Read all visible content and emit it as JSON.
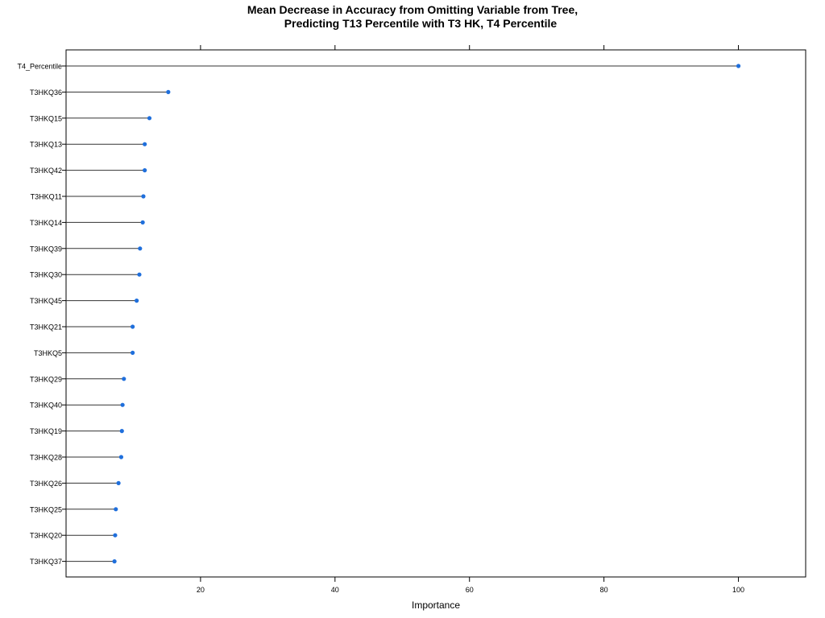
{
  "chart_data": {
    "type": "dot",
    "title": [
      "Mean Decrease in Accuracy from Omitting Variable from Tree,",
      "Predicting T13 Percentile with T3 HK, T4 Percentile"
    ],
    "xlabel": "Importance",
    "ylabel": "",
    "xlim": [
      0,
      110
    ],
    "xticks": [
      20,
      40,
      60,
      80,
      100
    ],
    "grid": false,
    "point_color": "#1f6fdc",
    "line_color": "#333333",
    "categories": [
      "T4_Percentile",
      "T3HKQ36",
      "T3HKQ15",
      "T3HKQ13",
      "T3HKQ42",
      "T3HKQ11",
      "T3HKQ14",
      "T3HKQ39",
      "T3HKQ30",
      "T3HKQ45",
      "T3HKQ21",
      "T3HKQ5",
      "T3HKQ29",
      "T3HKQ40",
      "T3HKQ19",
      "T3HKQ28",
      "T3HKQ26",
      "T3HKQ25",
      "T3HKQ20",
      "T3HKQ37"
    ],
    "values": [
      100,
      15.2,
      12.4,
      11.7,
      11.7,
      11.5,
      11.4,
      11.0,
      10.9,
      10.5,
      9.9,
      9.9,
      8.6,
      8.4,
      8.3,
      8.2,
      7.8,
      7.4,
      7.3,
      7.2
    ]
  }
}
